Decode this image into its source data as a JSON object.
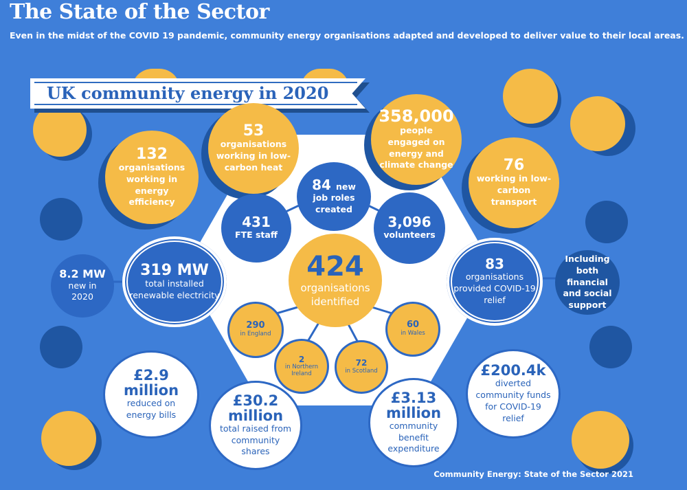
{
  "header": {
    "title": "The State of the Sector",
    "subtitle": "Even in the midst of the COVID 19 pandemic, community energy organisations adapted and developed to deliver value to their local areas."
  },
  "banner": {
    "title": "UK community energy in 2020"
  },
  "stats": {
    "low_carbon_heat": {
      "value": "53",
      "label": "organisations working in low-carbon heat"
    },
    "people_engaged": {
      "value": "358,000",
      "label": "people engaged on energy and climate change"
    },
    "energy_efficiency": {
      "value": "132",
      "label": "organisations working in energy efficiency"
    },
    "low_carbon_transport": {
      "value": "76",
      "label": "working in low-carbon transport"
    },
    "job_roles": {
      "value": "84",
      "label_inline": "new",
      "label": "job roles created"
    },
    "fte_staff": {
      "value": "431",
      "label": "FTE staff"
    },
    "volunteers": {
      "value": "3,096",
      "label": "volunteers"
    },
    "organisations": {
      "value": "424",
      "label": "organisations identified"
    },
    "installed": {
      "value": "319 MW",
      "label": "total installed renewable electricity"
    },
    "new_mw": {
      "value": "8.2 MW",
      "label": "new in 2020"
    },
    "covid_relief": {
      "value": "83",
      "label": "organisations provided COVID-19 relief"
    },
    "covid_support": {
      "label": "Including both financial and social support"
    },
    "england": {
      "value": "290",
      "label": "in England"
    },
    "wales": {
      "value": "60",
      "label": "in Wales"
    },
    "ni": {
      "value": "2",
      "label": "in Northern Ireland"
    },
    "scotland": {
      "value": "72",
      "label": "in Scotland"
    },
    "bills": {
      "value": "£2.9 million",
      "label": "reduced on energy bills"
    },
    "shares": {
      "value": "£30.2 million",
      "label": "total raised from community shares"
    },
    "benefit": {
      "value": "£3.13 million",
      "label": "community benefit expenditure"
    },
    "funds": {
      "value": "£200.4k",
      "label": "diverted community funds for COVID-19 relief"
    }
  },
  "footer": {
    "source": "Community Energy: State of the Sector 2021"
  },
  "colors": {
    "background": "#3f7fd9",
    "yellow": "#f5bb47",
    "blue": "#2d68c4",
    "navy": "#1f56a2",
    "white": "#ffffff"
  }
}
